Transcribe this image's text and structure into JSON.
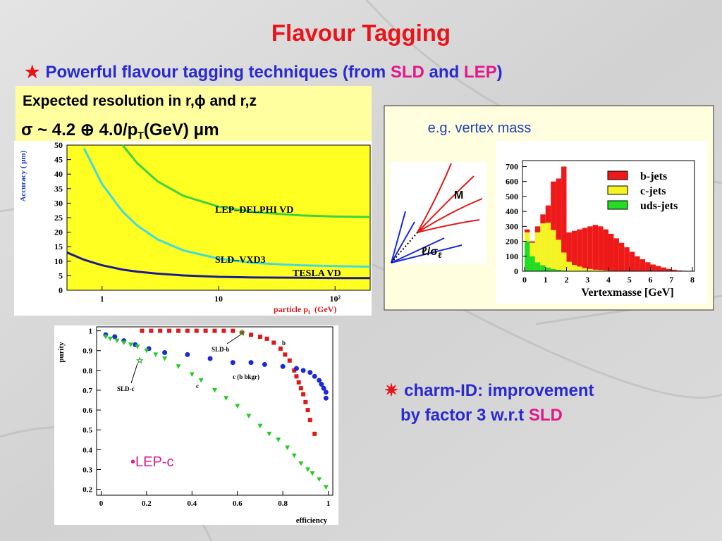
{
  "title": "Flavour Tagging",
  "subtitle": {
    "bullet": "★",
    "parts": [
      "Powerful flavour tagging techniques (from ",
      "SLD",
      " and ",
      "LEP",
      ")"
    ]
  },
  "resolution_box": {
    "line1": "Expected resolution in r,ϕ and r,z",
    "line2": [
      "σ ~ 4.2 ⊕ 4.0/p",
      "T",
      "(GeV) μm"
    ]
  },
  "vertex_note": "e.g. vertex mass",
  "diagram": {
    "mass_label": "M",
    "sig_label": "ℓ/σ",
    "sig_sub": "ℓ"
  },
  "charm_note": {
    "bullet": "✷",
    "line1": "charm-ID: improvement",
    "line2": [
      "by factor 3 w.r.t ",
      "SLD"
    ]
  },
  "lep_c_note": "•LEP-c",
  "chart_data": [
    {
      "type": "line",
      "y_label": "Accuracy ( μm)",
      "x_label": {
        "text": "particle p",
        "sub": "t",
        "unit": "(GeV)"
      },
      "log_x": true,
      "xlim": [
        0.5,
        200
      ],
      "xticks": [
        1,
        10,
        {
          "value": 100,
          "label": "10²"
        }
      ],
      "ylim": [
        0,
        50
      ],
      "yticks": [
        0,
        5,
        10,
        15,
        20,
        25,
        30,
        35,
        40,
        45,
        50
      ],
      "plot_background": "#ffff22",
      "x": [
        0.5,
        0.7,
        1,
        1.5,
        2,
        3,
        5,
        10,
        20,
        50,
        100,
        200
      ],
      "series": [
        {
          "name": "LEP–DELPHI VD",
          "color": "#3fd43f",
          "values": [
            null,
            null,
            null,
            50,
            43.8,
            37.5,
            32.5,
            28.8,
            26.9,
            25.8,
            25.4,
            25.2
          ]
        },
        {
          "name": "SLD–VXD3",
          "color": "#3fdcdc",
          "values": [
            null,
            48.9,
            36.6,
            27.1,
            22.3,
            17.5,
            13.7,
            10.9,
            9.4,
            8.6,
            8.3,
            8.1
          ]
        },
        {
          "name": "TESLA VD",
          "color": "#1c1c8c",
          "values": [
            13.0,
            10.5,
            8.6,
            7.1,
            6.4,
            5.7,
            5.1,
            4.6,
            4.4,
            4.3,
            4.2,
            4.2
          ]
        }
      ]
    },
    {
      "type": "histogram",
      "stacked": true,
      "x_label": "Vertexmasse [GeV]",
      "xlim": [
        -0.1,
        8.1
      ],
      "xticks": [
        0,
        1,
        2,
        3,
        4,
        5,
        6,
        7,
        8
      ],
      "ylim": [
        0,
        740
      ],
      "yticks": [
        0,
        100,
        200,
        300,
        400,
        500,
        600,
        700
      ],
      "bins": [
        0,
        0.25,
        0.5,
        0.75,
        1,
        1.25,
        1.5,
        1.75,
        2,
        2.25,
        2.5,
        2.75,
        3,
        3.25,
        3.5,
        3.75,
        4,
        4.25,
        4.5,
        4.75,
        5,
        5.25,
        5.5,
        5.75,
        6,
        6.25,
        6.5,
        6.75,
        7,
        7.25,
        7.5,
        7.75,
        8
      ],
      "series": [
        {
          "name": "uds-jets",
          "color": "#22dd22",
          "values": [
            200,
            100,
            60,
            40,
            25,
            15,
            10,
            5,
            3,
            2,
            1,
            0,
            0,
            0,
            0,
            0,
            0,
            0,
            0,
            0,
            0,
            0,
            0,
            0,
            0,
            0,
            0,
            0,
            0,
            0,
            0,
            0
          ]
        },
        {
          "name": "c-jets",
          "color": "#f4f422",
          "values": [
            60,
            90,
            200,
            280,
            300,
            260,
            200,
            120,
            60,
            40,
            30,
            20,
            15,
            10,
            8,
            5,
            3,
            2,
            1,
            1,
            0,
            0,
            0,
            0,
            0,
            0,
            0,
            0,
            0,
            0,
            0,
            0
          ]
        },
        {
          "name": "b-jets",
          "color": "#ee1a1a",
          "values": [
            20,
            10,
            40,
            60,
            115,
            325,
            410,
            575,
            197,
            228,
            249,
            270,
            285,
            300,
            292,
            275,
            247,
            218,
            189,
            159,
            130,
            100,
            80,
            60,
            45,
            35,
            25,
            15,
            10,
            5,
            3,
            2
          ]
        }
      ]
    },
    {
      "type": "scatter",
      "x_label": "efficiency",
      "y_label": "purity",
      "xlim": [
        -0.02,
        1.02
      ],
      "xticks": [
        0,
        0.2,
        0.4,
        0.6,
        0.8,
        1
      ],
      "ylim": [
        0.17,
        1.02
      ],
      "yticks": [
        0.2,
        0.3,
        0.4,
        0.5,
        0.6,
        0.7,
        0.8,
        0.9,
        1
      ],
      "series": [
        {
          "name": "b",
          "color": "#e01818",
          "marker": "square",
          "x": [
            0.18,
            0.22,
            0.26,
            0.3,
            0.34,
            0.38,
            0.42,
            0.46,
            0.5,
            0.54,
            0.58,
            0.62,
            0.66,
            0.7,
            0.73,
            0.76,
            0.79,
            0.81,
            0.83,
            0.85,
            0.86,
            0.87,
            0.88,
            0.89,
            0.9,
            0.91,
            0.92,
            0.94
          ],
          "values": [
            1,
            1,
            1,
            1,
            1,
            1,
            1,
            1,
            1,
            1,
            1,
            0.99,
            0.98,
            0.97,
            0.96,
            0.94,
            0.91,
            0.88,
            0.85,
            0.8,
            0.77,
            0.74,
            0.71,
            0.68,
            0.64,
            0.6,
            0.55,
            0.48
          ]
        },
        {
          "name": "c (b bkgr)",
          "color": "#1a2ad8",
          "marker": "circle",
          "x": [
            0.02,
            0.06,
            0.1,
            0.15,
            0.21,
            0.28,
            0.38,
            0.48,
            0.58,
            0.66,
            0.72,
            0.8,
            0.86,
            0.89,
            0.92,
            0.94,
            0.96,
            0.97,
            0.98,
            0.99,
            0.99
          ],
          "values": [
            0.98,
            0.97,
            0.95,
            0.93,
            0.91,
            0.89,
            0.88,
            0.86,
            0.84,
            0.84,
            0.83,
            0.82,
            0.81,
            0.8,
            0.79,
            0.77,
            0.75,
            0.73,
            0.71,
            0.69,
            0.66
          ]
        },
        {
          "name": "c",
          "color": "#22cc22",
          "marker": "triangle",
          "x": [
            0.02,
            0.04,
            0.07,
            0.1,
            0.13,
            0.16,
            0.2,
            0.24,
            0.28,
            0.34,
            0.4,
            0.44,
            0.5,
            0.55,
            0.6,
            0.65,
            0.7,
            0.74,
            0.78,
            0.82,
            0.85,
            0.88,
            0.91,
            0.93,
            0.96,
            0.99
          ],
          "values": [
            0.97,
            0.96,
            0.95,
            0.94,
            0.93,
            0.92,
            0.9,
            0.88,
            0.86,
            0.82,
            0.78,
            0.75,
            0.7,
            0.66,
            0.62,
            0.57,
            0.52,
            0.48,
            0.45,
            0.41,
            0.37,
            0.33,
            0.3,
            0.28,
            0.25,
            0.21
          ]
        },
        {
          "name": "SLD-b",
          "color": "#22aa22",
          "marker": "star",
          "x": [
            0.62
          ],
          "values": [
            0.99
          ]
        },
        {
          "name": "SLD-c",
          "color": "#22aa22",
          "marker": "star",
          "x": [
            0.17
          ],
          "values": [
            0.85
          ]
        }
      ]
    }
  ]
}
